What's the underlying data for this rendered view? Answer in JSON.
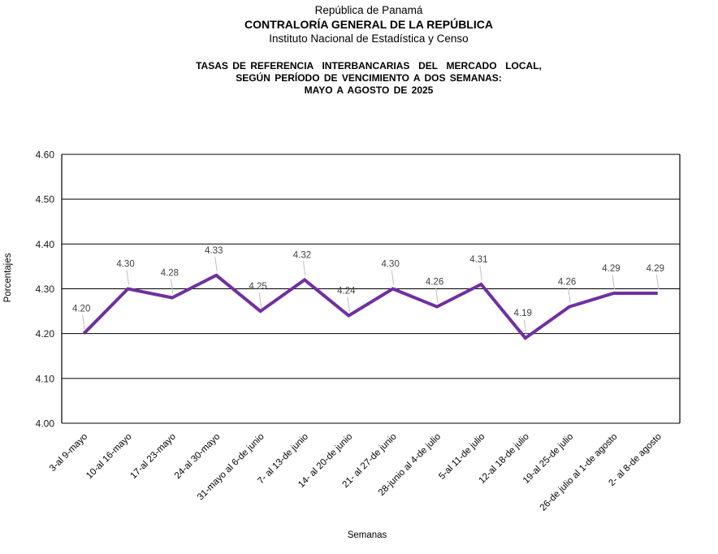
{
  "header": {
    "line1": "República de Panamá",
    "line2": "CONTRALORÍA GENERAL DE LA REPÚBLICA",
    "line3": "Instituto Nacional de Estadística y Censo"
  },
  "title": {
    "line1": "TASAS DE REFERENCIA  INTERBANCARIAS  DEL  MERCADO  LOCAL,",
    "line2": "SEGÚN PERÍODO DE VENCIMIENTO A DOS SEMANAS:",
    "line3": "MAYO A AGOSTO DE 2025"
  },
  "chart_data": {
    "type": "line",
    "categories": [
      "3-al 9-mayo",
      "10-al 16-mayo",
      "17-al 23-mayo",
      "24-al 30-mayo",
      "31-mayo al 6-de junio",
      "7- al 13-de junio",
      "14- al 20-de junio",
      "21- al 27-de junio",
      "28-junio al 4-de julio",
      "5-al 11-de julio",
      "12-al 18-de julio",
      "19-al 25-de julio",
      "26-de julio al 1-de agosto",
      "2- al 8-de agosto"
    ],
    "values": [
      4.2,
      4.3,
      4.28,
      4.33,
      4.25,
      4.32,
      4.24,
      4.3,
      4.26,
      4.31,
      4.19,
      4.26,
      4.29,
      4.29
    ],
    "data_labels": [
      "4.20",
      "4.30",
      "4.28",
      "4.33",
      "4.25",
      "4.32",
      "4.24",
      "4.30",
      "4.26",
      "4.31",
      "4.19",
      "4.26",
      "4.29",
      "4.29"
    ],
    "xlabel": "Semanas",
    "ylabel": "Porcentajes",
    "ylim": [
      4.0,
      4.6
    ],
    "ytick_step": 0.1,
    "ytick_labels": [
      "4.00",
      "4.10",
      "4.20",
      "4.30",
      "4.40",
      "4.50",
      "4.60"
    ],
    "grid": true,
    "legend": "none",
    "line_color": "#7030A0",
    "grid_color": "#000000",
    "tick_label_color": "#1a1a1a",
    "data_label_color": "#404040",
    "leader_line_color": "#BFBFBF"
  }
}
